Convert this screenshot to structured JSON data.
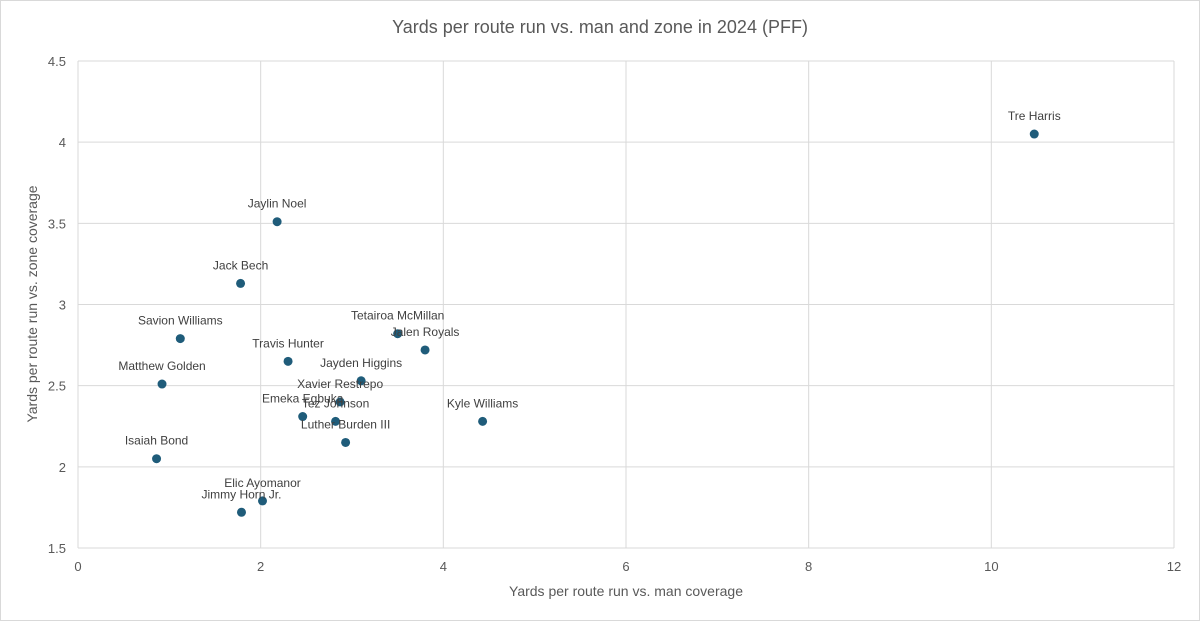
{
  "chart_data": {
    "type": "scatter",
    "title": "Yards per route run vs. man and zone in 2024 (PFF)",
    "xlabel": "Yards per route run vs. man coverage",
    "ylabel": "Yards per route run vs. zone coverage",
    "xlim": [
      0,
      12
    ],
    "ylim": [
      1.5,
      4.5
    ],
    "x_ticks": [
      0,
      2,
      4,
      6,
      8,
      10,
      12
    ],
    "y_ticks": [
      1.5,
      2,
      2.5,
      3,
      3.5,
      4,
      4.5
    ],
    "grid": true,
    "marker_color": "#1f5c7a",
    "points": [
      {
        "label": "Tre Harris",
        "x": 10.47,
        "y": 4.05
      },
      {
        "label": "Jaylin Noel",
        "x": 2.18,
        "y": 3.51
      },
      {
        "label": "Jack Bech",
        "x": 1.78,
        "y": 3.13
      },
      {
        "label": "Savion Williams",
        "x": 1.12,
        "y": 2.79
      },
      {
        "label": "Tetairoa McMillan",
        "x": 3.5,
        "y": 2.82
      },
      {
        "label": "Jalen Royals",
        "x": 3.8,
        "y": 2.72
      },
      {
        "label": "Travis Hunter",
        "x": 2.3,
        "y": 2.65
      },
      {
        "label": "Jayden Higgins",
        "x": 3.1,
        "y": 2.53
      },
      {
        "label": "Matthew Golden",
        "x": 0.92,
        "y": 2.51
      },
      {
        "label": "Xavier Restrepo",
        "x": 2.87,
        "y": 2.4
      },
      {
        "label": "Emeka Egbuka",
        "x": 2.46,
        "y": 2.31
      },
      {
        "label": "Tez Johnson",
        "x": 2.82,
        "y": 2.28
      },
      {
        "label": "Kyle Williams",
        "x": 4.43,
        "y": 2.28
      },
      {
        "label": "Luther Burden III",
        "x": 2.93,
        "y": 2.15
      },
      {
        "label": "Isaiah Bond",
        "x": 0.86,
        "y": 2.05
      },
      {
        "label": "Elic Ayomanor",
        "x": 2.02,
        "y": 1.79
      },
      {
        "label": "Jimmy Horn Jr.",
        "x": 1.79,
        "y": 1.72
      }
    ]
  }
}
